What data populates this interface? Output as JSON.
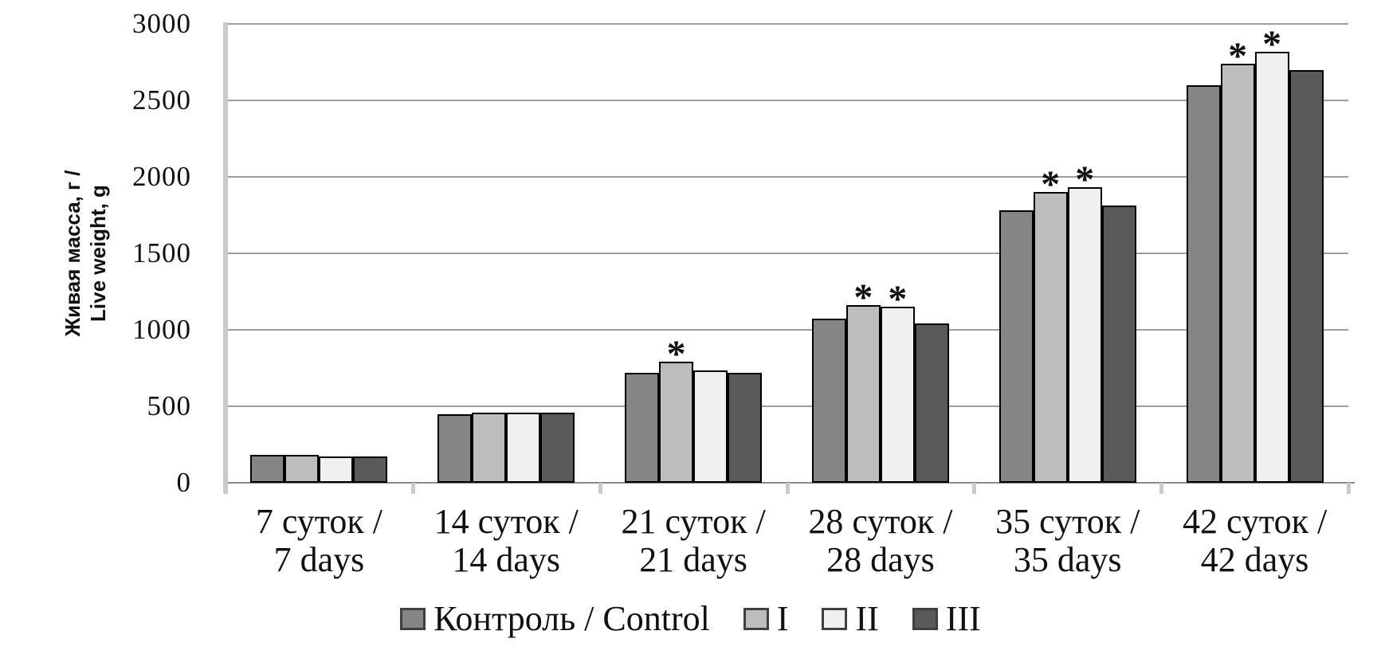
{
  "chart_data": {
    "type": "bar",
    "title": "",
    "ylabel_line1": "Живая масса, г /",
    "ylabel_line2": "Live weight, g",
    "xlabel": "",
    "ylim": [
      0,
      3000
    ],
    "y_ticks": [
      0,
      500,
      1000,
      1500,
      2000,
      2500,
      3000
    ],
    "grid": true,
    "legend_position": "bottom",
    "significance_marker": "*",
    "categories": [
      {
        "line1": "7 суток /",
        "line2": "7 days"
      },
      {
        "line1": "14 суток /",
        "line2": "14 days"
      },
      {
        "line1": "21 суток /",
        "line2": "21 days"
      },
      {
        "line1": "28 суток /",
        "line2": "28 days"
      },
      {
        "line1": "35 суток /",
        "line2": "35 days"
      },
      {
        "line1": "42 суток /",
        "line2": "42 days"
      }
    ],
    "series": [
      {
        "name": "Контроль / Control",
        "color": "#858585",
        "values": [
          180,
          450,
          720,
          1075,
          1780,
          2600
        ],
        "significant": [
          false,
          false,
          false,
          false,
          false,
          false
        ]
      },
      {
        "name": "I",
        "color": "#bdbdbd",
        "values": [
          180,
          460,
          790,
          1160,
          1900,
          2740
        ],
        "significant": [
          false,
          false,
          true,
          true,
          true,
          true
        ]
      },
      {
        "name": "II",
        "color": "#f0f0f0",
        "values": [
          170,
          460,
          735,
          1150,
          1930,
          2820
        ],
        "significant": [
          false,
          false,
          false,
          true,
          true,
          true
        ]
      },
      {
        "name": "III",
        "color": "#5a5a5a",
        "values": [
          170,
          460,
          720,
          1040,
          1810,
          2700
        ],
        "significant": [
          false,
          false,
          false,
          false,
          false,
          false
        ]
      }
    ],
    "colors": {
      "grid": "#9c9c9c",
      "axis_line": "#8a8a8a",
      "axis_band": "#cacaca",
      "text": "#111111",
      "bar_border": "#000000"
    }
  }
}
